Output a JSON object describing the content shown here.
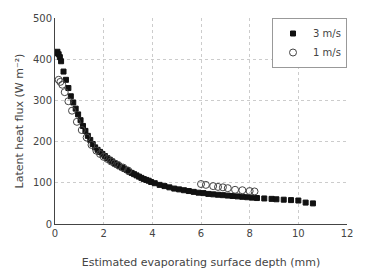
{
  "chart_data": {
    "type": "scatter",
    "xlabel": "Estimated evaporating surface depth (mm)",
    "ylabel": "Latent heat flux (W m⁻²)",
    "xlim": [
      0,
      12
    ],
    "ylim": [
      0,
      500
    ],
    "xticks": [
      0,
      2,
      4,
      6,
      8,
      10,
      12
    ],
    "yticks": [
      0,
      100,
      200,
      300,
      400,
      500
    ],
    "grid": true,
    "legend": "upper right",
    "series": [
      {
        "name": "3 m/s",
        "color": "#111111",
        "marker": "square",
        "x": [
          0.05,
          0.1,
          0.15,
          0.2,
          0.25,
          0.35,
          0.45,
          0.55,
          0.65,
          0.75,
          0.85,
          0.95,
          1.05,
          1.15,
          1.25,
          1.35,
          1.45,
          1.55,
          1.65,
          1.75,
          1.85,
          1.95,
          2.05,
          2.15,
          2.25,
          2.35,
          2.45,
          2.55,
          2.65,
          2.75,
          2.85,
          2.95,
          3.05,
          3.15,
          3.25,
          3.35,
          3.45,
          3.55,
          3.65,
          3.75,
          3.85,
          3.95,
          4.1,
          4.3,
          4.5,
          4.7,
          4.9,
          5.1,
          5.3,
          5.5,
          5.7,
          5.9,
          6.1,
          6.3,
          6.5,
          6.7,
          6.9,
          7.1,
          7.3,
          7.5,
          7.7,
          7.9,
          8.1,
          8.3,
          8.6,
          8.9,
          9.1,
          9.4,
          9.7,
          10.0,
          10.3,
          10.6
        ],
        "values": [
          415,
          418,
          412,
          405,
          395,
          370,
          350,
          330,
          310,
          295,
          280,
          266,
          252,
          238,
          226,
          214,
          204,
          194,
          186,
          180,
          175,
          170,
          165,
          160,
          156,
          152,
          148,
          144,
          140,
          137,
          134,
          131,
          127,
          124,
          121,
          118,
          115,
          112,
          109,
          107,
          105,
          102,
          99,
          95,
          92,
          89,
          86,
          84,
          82,
          80,
          78,
          76,
          75,
          73,
          72,
          71,
          70,
          69,
          68,
          67,
          66,
          65,
          64,
          63,
          62,
          61,
          60,
          59,
          58,
          57,
          52,
          50
        ]
      },
      {
        "name": "1 m/s",
        "color": "#444444",
        "marker": "circle-open",
        "x": [
          0.15,
          0.22,
          0.3,
          0.4,
          0.55,
          0.7,
          0.9,
          1.1,
          1.3,
          1.5,
          1.7,
          1.85,
          2.0,
          2.15,
          2.3,
          2.45,
          2.6,
          2.8,
          3.0,
          6.0,
          6.2,
          6.5,
          6.7,
          6.9,
          7.1,
          7.4,
          7.7,
          8.0,
          8.2
        ],
        "values": [
          350,
          345,
          338,
          320,
          298,
          275,
          248,
          228,
          210,
          192,
          178,
          170,
          163,
          158,
          152,
          147,
          143,
          137,
          130,
          97,
          95,
          92,
          90,
          89,
          87,
          83,
          82,
          80,
          79
        ]
      }
    ]
  }
}
